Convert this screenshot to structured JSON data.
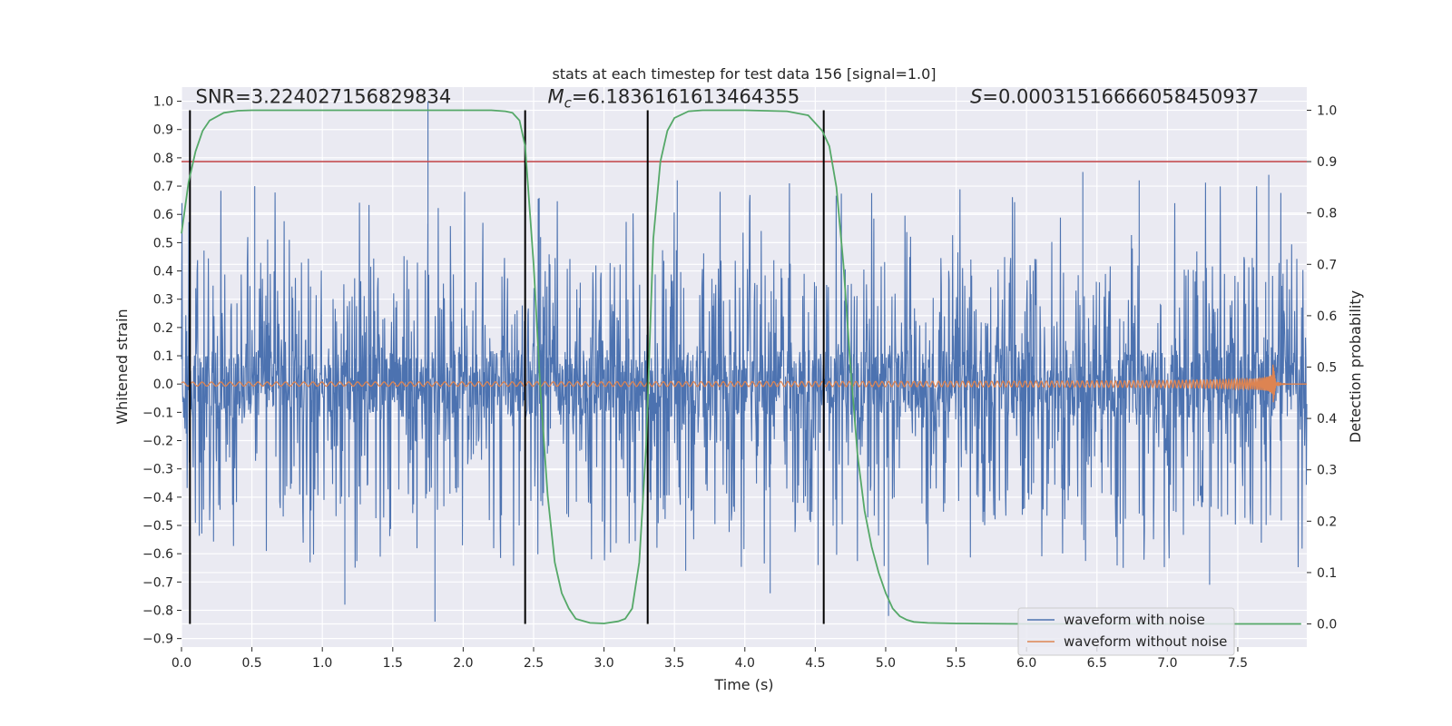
{
  "chart_data": {
    "type": "line",
    "title": "stats at each timestep for test data 156 [signal=1.0]",
    "xlabel": "Time (s)",
    "ylabel": "Whitened strain",
    "ylabel_right": "Detection probability",
    "xlim": [
      0.0,
      7.99
    ],
    "ylim": [
      -0.93,
      1.05
    ],
    "ylim_right": [
      -0.045,
      1.045
    ],
    "x_ticks": [
      0.0,
      0.5,
      1.0,
      1.5,
      2.0,
      2.5,
      3.0,
      3.5,
      4.0,
      4.5,
      5.0,
      5.5,
      6.0,
      6.5,
      7.0,
      7.5
    ],
    "x_tick_labels": [
      "0.0",
      "0.5",
      "1.0",
      "1.5",
      "2.0",
      "2.5",
      "3.0",
      "3.5",
      "4.0",
      "4.5",
      "5.0",
      "5.5",
      "6.0",
      "6.5",
      "7.0",
      "7.5"
    ],
    "y_ticks": [
      1.0,
      0.9,
      0.8,
      0.7,
      0.6,
      0.5,
      0.4,
      0.3,
      0.2,
      0.1,
      0.0,
      -0.1,
      -0.2,
      -0.3,
      -0.4,
      -0.5,
      -0.6,
      -0.7,
      -0.8,
      -0.9
    ],
    "y_tick_labels": [
      "1.0",
      "0.9",
      "0.8",
      "0.7",
      "0.6",
      "0.5",
      "0.4",
      "0.3",
      "0.2",
      "0.1",
      "0.0",
      "−0.1",
      "−0.2",
      "−0.3",
      "−0.4",
      "−0.5",
      "−0.6",
      "−0.7",
      "−0.8",
      "−0.9"
    ],
    "y_right_ticks": [
      1.0,
      0.9,
      0.8,
      0.7,
      0.6,
      0.5,
      0.4,
      0.3,
      0.2,
      0.1,
      0.0
    ],
    "y_right_tick_labels": [
      "1.0",
      "0.9",
      "0.8",
      "0.7",
      "0.6",
      "0.5",
      "0.4",
      "0.3",
      "0.2",
      "0.1",
      "0.0"
    ],
    "grid": true,
    "annotations": [
      {
        "label": "SNR=3.224027156829834",
        "x": 0.1
      },
      {
        "label": "M_c=6.1836161613464355",
        "x": 2.6
      },
      {
        "label": "S=0.00031516666058450937",
        "x": 5.6
      }
    ],
    "annotation_y": 1.02,
    "legend": {
      "position": "lower-right",
      "entries": [
        {
          "name": "waveform with noise",
          "color": "#4c72b0"
        },
        {
          "name": "waveform without noise",
          "color": "#dd8452"
        }
      ]
    },
    "threshold": {
      "value": 0.9,
      "axis": "right",
      "color": "#c44e52"
    },
    "vertical_lines": [
      0.06,
      2.44,
      3.31,
      4.56
    ],
    "noise_series": {
      "name": "waveform with noise",
      "color": "#4c72b0",
      "typical_range": [
        -0.5,
        0.45
      ],
      "spikes": [
        {
          "x": 1.75,
          "y": 1.0
        },
        {
          "x": 1.8,
          "y": -0.84
        },
        {
          "x": 3.52,
          "y": 0.72
        },
        {
          "x": 3.58,
          "y": -0.66
        },
        {
          "x": 4.18,
          "y": -0.74
        },
        {
          "x": 5.02,
          "y": -0.82
        },
        {
          "x": 6.4,
          "y": 0.75
        },
        {
          "x": 7.3,
          "y": -0.71
        },
        {
          "x": 7.72,
          "y": 0.74
        },
        {
          "x": 6.8,
          "y": 0.72
        },
        {
          "x": 0.52,
          "y": 0.7
        },
        {
          "x": 1.16,
          "y": -0.78
        },
        {
          "x": 2.55,
          "y": 0.52
        },
        {
          "x": 4.52,
          "y": -0.64
        }
      ]
    },
    "clean_series": {
      "name": "waveform without noise",
      "color": "#dd8452",
      "merger_time": 7.75,
      "peak_amplitude": 0.075
    },
    "probability_series": {
      "color": "#55a868",
      "axis": "right",
      "x": [
        0.0,
        0.05,
        0.1,
        0.15,
        0.2,
        0.3,
        0.4,
        0.5,
        0.6,
        0.8,
        1.0,
        1.5,
        2.0,
        2.2,
        2.3,
        2.35,
        2.4,
        2.44,
        2.5,
        2.55,
        2.6,
        2.65,
        2.7,
        2.75,
        2.8,
        2.9,
        3.0,
        3.1,
        3.15,
        3.2,
        3.25,
        3.3,
        3.35,
        3.4,
        3.45,
        3.5,
        3.6,
        3.7,
        4.0,
        4.3,
        4.45,
        4.55,
        4.6,
        4.65,
        4.7,
        4.75,
        4.8,
        4.85,
        4.9,
        4.95,
        5.0,
        5.05,
        5.1,
        5.15,
        5.2,
        5.3,
        5.5,
        6.0,
        7.0,
        7.95
      ],
      "y": [
        0.76,
        0.86,
        0.92,
        0.96,
        0.98,
        0.995,
        0.999,
        1.0,
        1.0,
        1.0,
        1.0,
        1.0,
        1.0,
        1.0,
        0.998,
        0.995,
        0.98,
        0.93,
        0.7,
        0.45,
        0.25,
        0.12,
        0.06,
        0.03,
        0.01,
        0.002,
        0.001,
        0.005,
        0.01,
        0.03,
        0.12,
        0.35,
        0.75,
        0.9,
        0.96,
        0.985,
        0.998,
        1.0,
        1.0,
        0.998,
        0.99,
        0.96,
        0.93,
        0.85,
        0.7,
        0.5,
        0.33,
        0.22,
        0.15,
        0.1,
        0.06,
        0.03,
        0.015,
        0.008,
        0.004,
        0.002,
        0.001,
        0.0,
        0.0,
        0.0
      ]
    }
  }
}
